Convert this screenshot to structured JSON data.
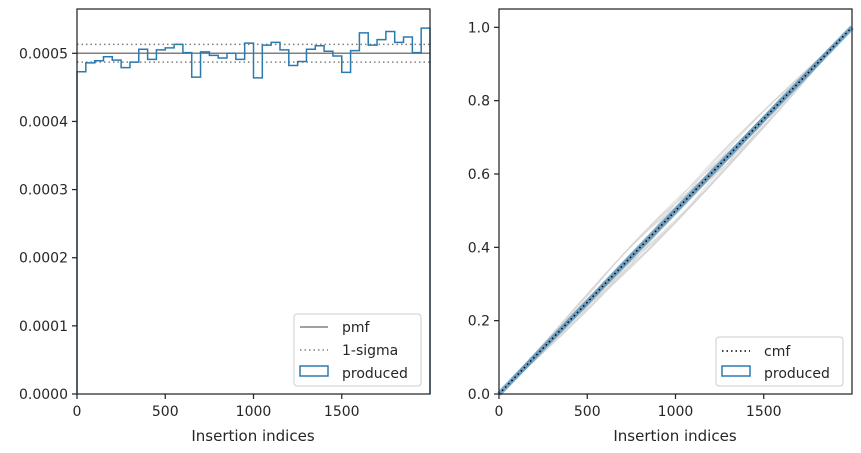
{
  "chart_data": [
    {
      "type": "line",
      "xlabel": "Insertion indices",
      "ylabel": "",
      "xlim": [
        0,
        2000
      ],
      "ylim": [
        0,
        0.000565
      ],
      "xticks": [
        0,
        500,
        1000,
        1500
      ],
      "xtick_labels": [
        "0",
        "500",
        "1000",
        "1500"
      ],
      "yticks": [
        0,
        0.0001,
        0.0002,
        0.0003,
        0.0004,
        0.0005
      ],
      "ytick_labels": [
        "0.0000",
        "0.0001",
        "0.0002",
        "0.0003",
        "0.0004",
        "0.0005"
      ],
      "grid": false,
      "legend_position": "lower-right",
      "legend": [
        {
          "label": "pmf",
          "style": "solid",
          "color": "#808080"
        },
        {
          "label": "1-sigma",
          "style": "dotted",
          "color": "#808080"
        },
        {
          "label": "produced",
          "style": "patch",
          "color": "#2a7ab0"
        }
      ],
      "pmf": 0.0005,
      "sigma": [
        0.000487,
        0.000513
      ],
      "bin_width": 50,
      "produced": [
        0.000473,
        0.000486,
        0.000489,
        0.000495,
        0.00049,
        0.000479,
        0.000487,
        0.000506,
        0.000491,
        0.000505,
        0.000508,
        0.000513,
        0.000501,
        0.000465,
        0.000502,
        0.000497,
        0.000493,
        0.0005,
        0.000491,
        0.000515,
        0.000464,
        0.000512,
        0.000516,
        0.000505,
        0.000482,
        0.000488,
        0.000506,
        0.000511,
        0.000503,
        0.000496,
        0.000472,
        0.000504,
        0.00053,
        0.000512,
        0.00052,
        0.000532,
        0.000516,
        0.000524,
        0.000501,
        0.000537
      ]
    },
    {
      "type": "line",
      "xlabel": "Insertion indices",
      "ylabel": "",
      "xlim": [
        0,
        2000
      ],
      "ylim": [
        0,
        1.05
      ],
      "xticks": [
        0,
        500,
        1000,
        1500
      ],
      "xtick_labels": [
        "0",
        "500",
        "1000",
        "1500"
      ],
      "yticks": [
        0,
        0.2,
        0.4,
        0.6,
        0.8,
        1.0
      ],
      "ytick_labels": [
        "0.0",
        "0.2",
        "0.4",
        "0.6",
        "0.8",
        "1.0"
      ],
      "grid": false,
      "legend_position": "lower-right",
      "legend": [
        {
          "label": "cmf",
          "style": "dotted",
          "color": "#000000"
        },
        {
          "label": "produced",
          "style": "patch",
          "color": "#2a7ab0"
        }
      ],
      "cmf": {
        "x": [
          0,
          2000
        ],
        "y": [
          0,
          1
        ]
      },
      "background_curves_color": "#d3d3d3"
    }
  ]
}
